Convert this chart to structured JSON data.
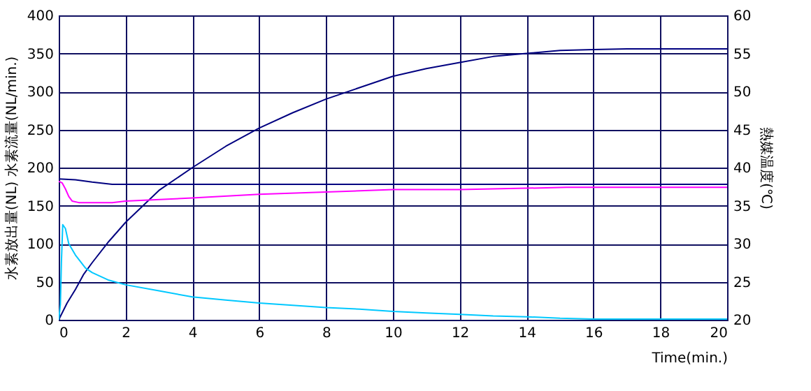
{
  "chart_data": {
    "type": "line",
    "xlabel": "Time(min.)",
    "ylabel": "水素放出量(NL) 水素流量(NL/min.)",
    "y2label": "熱媒温度(℃)",
    "xlim": [
      0,
      20
    ],
    "xticks": [
      0,
      2,
      4,
      6,
      8,
      10,
      12,
      14,
      16,
      18,
      20
    ],
    "ylim": [
      0,
      400
    ],
    "yticks": [
      0,
      50,
      100,
      150,
      200,
      250,
      300,
      350,
      400
    ],
    "y2lim": [
      20,
      60
    ],
    "y2ticks": [
      20,
      25,
      30,
      35,
      40,
      45,
      50,
      55,
      60
    ],
    "grid": true,
    "legend": false,
    "line_style": "solid",
    "series": [
      {
        "color": "#000080",
        "x": [
          0,
          0.25,
          0.5,
          0.75,
          1,
          1.5,
          2,
          3,
          4,
          5,
          6,
          7,
          8,
          9,
          10,
          11,
          12,
          13,
          14,
          15,
          16,
          17,
          18,
          19,
          20
        ],
        "values": [
          0,
          22,
          40,
          60,
          75,
          103,
          128,
          170,
          200,
          228,
          252,
          272,
          290,
          305,
          320,
          330,
          338,
          346,
          350,
          354,
          355,
          356,
          356,
          356,
          356
        ]
      },
      {
        "color": "#00c8ff",
        "x": [
          0,
          0.05,
          0.08,
          0.12,
          0.2,
          0.3,
          0.5,
          0.8,
          1,
          1.5,
          2,
          3,
          4,
          5,
          6,
          7,
          8,
          9,
          10,
          11,
          12,
          13,
          14,
          15,
          16,
          18,
          20
        ],
        "values": [
          0,
          20,
          75,
          125,
          120,
          100,
          85,
          68,
          62,
          52,
          46,
          38,
          30,
          26,
          22,
          19,
          16,
          14,
          11,
          9,
          7,
          5,
          4,
          2,
          1,
          1,
          1
        ]
      },
      {
        "color": "#000080",
        "axis": "y2",
        "x": [
          0,
          0.5,
          1,
          1.6,
          5,
          10,
          15,
          20
        ],
        "values": [
          38.5,
          38.4,
          38.1,
          37.8,
          37.8,
          37.8,
          37.8,
          37.8
        ]
      },
      {
        "color": "#ff00ff",
        "axis": "y2",
        "x": [
          0,
          0.1,
          0.2,
          0.3,
          0.4,
          0.6,
          1.6,
          2,
          4,
          6,
          8,
          10,
          12,
          15.2,
          20
        ],
        "values": [
          38.2,
          38.0,
          37.2,
          36.2,
          35.6,
          35.4,
          35.4,
          35.6,
          36.0,
          36.5,
          36.8,
          37.1,
          37.1,
          37.4,
          37.4
        ]
      }
    ]
  }
}
